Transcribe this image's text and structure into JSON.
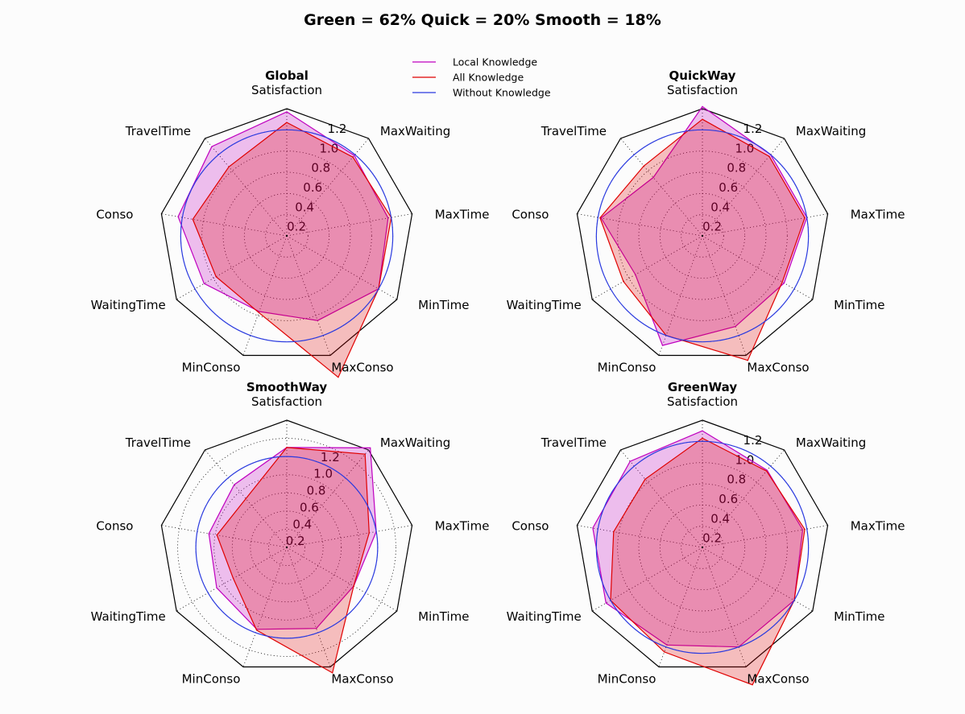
{
  "suptitle": "Green = 62% Quick = 20% Smooth = 18%",
  "legend": {
    "placement": "top-center",
    "entries": [
      {
        "label": "Local Knowledge",
        "color": "#bf00bf"
      },
      {
        "label": "All Knowledge",
        "color": "#e00000"
      },
      {
        "label": "Without Knowledge",
        "color": "#2a3ae0"
      }
    ]
  },
  "colors": {
    "local": "#bf00bf",
    "all": "#e00000",
    "without": "#2a3ae0",
    "frame": "#000000"
  },
  "chart_data": [
    {
      "type": "radar",
      "title": "Global",
      "axes": [
        "Satisfaction",
        "MaxWaiting",
        "MaxTime",
        "MinTime",
        "MaxConso",
        "MinConso",
        "WaitingTime",
        "Conso",
        "TravelTime"
      ],
      "rmax": 1.2,
      "rticks": [
        "0.2",
        "0.4",
        "0.6",
        "0.8",
        "1.0",
        "1.2"
      ],
      "series": [
        {
          "name": "Local Knowledge",
          "values": [
            1.17,
            0.99,
            0.97,
            1.0,
            0.85,
            0.76,
            0.9,
            1.04,
            1.1
          ]
        },
        {
          "name": "All Knowledge",
          "values": [
            1.07,
            0.97,
            1.0,
            1.0,
            1.42,
            0.77,
            0.77,
            0.9,
            0.85
          ]
        },
        {
          "name": "Without Knowledge",
          "values": [
            1,
            1,
            1,
            1,
            1,
            1,
            1,
            1,
            1
          ]
        }
      ]
    },
    {
      "type": "radar",
      "title": "QuickWay",
      "axes": [
        "Satisfaction",
        "MaxWaiting",
        "MaxTime",
        "MinTime",
        "MaxConso",
        "MinConso",
        "WaitingTime",
        "Conso",
        "TravelTime"
      ],
      "rmax": 1.2,
      "rticks": [
        "0.2",
        "0.4",
        "0.6",
        "0.8",
        "1.0",
        "1.2"
      ],
      "series": [
        {
          "name": "Local Knowledge",
          "values": [
            1.22,
            1.0,
            1.0,
            0.89,
            0.91,
            1.1,
            0.73,
            0.97,
            0.72
          ]
        },
        {
          "name": "All Knowledge",
          "values": [
            1.1,
            0.98,
            0.98,
            0.87,
            1.25,
            1.0,
            0.86,
            0.98,
            0.86
          ]
        },
        {
          "name": "Without Knowledge",
          "values": [
            1,
            1,
            1,
            1,
            1,
            1,
            1,
            1,
            1
          ]
        }
      ]
    },
    {
      "type": "radar",
      "title": "SmoothWay",
      "axes": [
        "Satisfaction",
        "MaxWaiting",
        "MaxTime",
        "MinTime",
        "MaxConso",
        "MinConso",
        "WaitingTime",
        "Conso",
        "TravelTime"
      ],
      "rmax": 1.4,
      "rticks": [
        "0.2",
        "0.4",
        "0.6",
        "0.8",
        "1.0",
        "1.2"
      ],
      "series": [
        {
          "name": "Local Knowledge",
          "values": [
            1.1,
            1.43,
            1.0,
            0.85,
            0.95,
            0.96,
            0.89,
            0.87,
            0.9
          ]
        },
        {
          "name": "All Knowledge",
          "values": [
            1.1,
            1.34,
            0.92,
            0.85,
            1.47,
            0.97,
            0.68,
            0.78,
            0.7
          ]
        },
        {
          "name": "Without Knowledge",
          "values": [
            1,
            1,
            1,
            1,
            1,
            1,
            1,
            1,
            1
          ]
        }
      ]
    },
    {
      "type": "radar",
      "title": "GreenWay",
      "axes": [
        "Satisfaction",
        "MaxWaiting",
        "MaxTime",
        "MinTime",
        "MaxConso",
        "MinConso",
        "WaitingTime",
        "Conso",
        "TravelTime"
      ],
      "rmax": 1.2,
      "rticks": [
        "0.2",
        "0.4",
        "0.6",
        "0.8",
        "1.0",
        "1.2"
      ],
      "series": [
        {
          "name": "Local Knowledge",
          "values": [
            1.1,
            0.95,
            0.96,
            1.0,
            1.0,
            0.98,
            1.05,
            1.05,
            1.06
          ]
        },
        {
          "name": "All Knowledge",
          "values": [
            1.03,
            0.94,
            0.98,
            1.0,
            1.38,
            1.05,
            1.0,
            0.85,
            0.84
          ]
        },
        {
          "name": "Without Knowledge",
          "values": [
            1,
            1,
            1,
            1,
            1,
            1,
            1,
            1,
            1
          ]
        }
      ]
    }
  ]
}
